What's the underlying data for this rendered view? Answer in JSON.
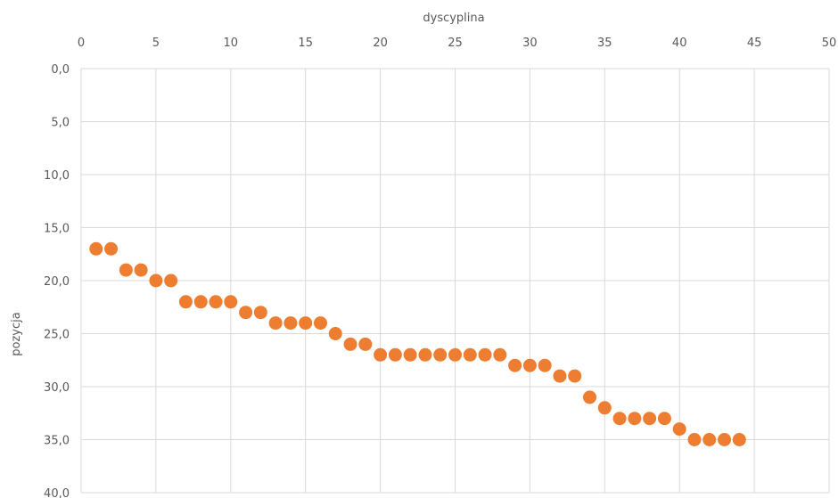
{
  "chart_data": {
    "type": "scatter",
    "xlabel": "dyscyplina",
    "ylabel": "pozycja",
    "xlim": [
      0,
      50
    ],
    "ylim": [
      0,
      40
    ],
    "y_reversed": true,
    "x_axis_position": "top",
    "x_ticks": [
      "0",
      "5",
      "10",
      "15",
      "20",
      "25",
      "30",
      "35",
      "40",
      "45",
      "50"
    ],
    "y_ticks": [
      "0,0",
      "5,0",
      "10,0",
      "15,0",
      "20,0",
      "25,0",
      "30,0",
      "35,0",
      "40,0"
    ],
    "grid": true,
    "marker_color": "#ed7d31",
    "series": [
      {
        "x": [
          1,
          2,
          3,
          4,
          5,
          6,
          7,
          8,
          9,
          10,
          11,
          12,
          13,
          14,
          15,
          16,
          17,
          18,
          19,
          20,
          21,
          22,
          23,
          24,
          25,
          26,
          27,
          28,
          29,
          30,
          31,
          32,
          33,
          34,
          35,
          36,
          37,
          38,
          39,
          40,
          41,
          42,
          43,
          44
        ],
        "y": [
          17,
          17,
          19,
          19,
          20,
          20,
          22,
          22,
          22,
          22,
          23,
          23,
          24,
          24,
          24,
          24,
          25,
          26,
          26,
          27,
          27,
          27,
          27,
          27,
          27,
          27,
          27,
          27,
          28,
          28,
          28,
          29,
          29,
          31,
          32,
          33,
          33,
          33,
          33,
          34,
          35,
          35,
          35,
          35
        ]
      }
    ]
  }
}
